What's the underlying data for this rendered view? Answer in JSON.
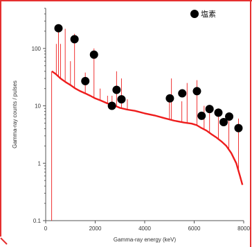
{
  "chart_data": {
    "type": "line",
    "xlabel": "Gamma-ray energy (keV)",
    "ylabel": "Gamma-ray counts / pulses",
    "xlim": [
      0,
      8000
    ],
    "ylim": [
      0.1,
      500
    ],
    "y_scale": "log",
    "x_ticks": [
      0,
      2000,
      4000,
      6000,
      8000
    ],
    "y_ticks": [
      0.1,
      1,
      10,
      100
    ],
    "y_tick_labels": [
      "0.1",
      "1",
      "10",
      "100"
    ],
    "grid": false,
    "line_color": "#ee1c1c",
    "marker_color": "#000000",
    "frame_color": "#e53030",
    "legend": {
      "position": "top-right",
      "label": "塩素"
    },
    "continuum": [
      [
        250,
        40
      ],
      [
        400,
        36
      ],
      [
        600,
        30
      ],
      [
        800,
        26
      ],
      [
        1000,
        23
      ],
      [
        1200,
        20
      ],
      [
        1400,
        18
      ],
      [
        1600,
        16.5
      ],
      [
        1800,
        15
      ],
      [
        2000,
        13.5
      ],
      [
        2200,
        12.5
      ],
      [
        2500,
        11
      ],
      [
        2800,
        10
      ],
      [
        3000,
        9.2
      ],
      [
        3300,
        8.6
      ],
      [
        3600,
        8.2
      ],
      [
        4000,
        7.4
      ],
      [
        4400,
        6.8
      ],
      [
        4800,
        6.1
      ],
      [
        5200,
        5.5
      ],
      [
        5600,
        5.1
      ],
      [
        5900,
        4.9
      ],
      [
        6100,
        4.6
      ],
      [
        6300,
        4.1
      ],
      [
        6500,
        3.7
      ],
      [
        6700,
        3.2
      ],
      [
        6900,
        2.8
      ],
      [
        7100,
        2.4
      ],
      [
        7300,
        2.0
      ],
      [
        7500,
        1.5
      ],
      [
        7700,
        1.0
      ],
      [
        7850,
        0.6
      ],
      [
        7950,
        0.42
      ]
    ],
    "peaks": [
      {
        "x": 240,
        "y": 0.1
      },
      {
        "x": 430,
        "y": 120
      },
      {
        "x": 517,
        "y": 250
      },
      {
        "x": 600,
        "y": 120
      },
      {
        "x": 788,
        "y": 220
      },
      {
        "x": 1000,
        "y": 60
      },
      {
        "x": 1165,
        "y": 180
      },
      {
        "x": 1600,
        "y": 38
      },
      {
        "x": 1951,
        "y": 100
      },
      {
        "x": 2200,
        "y": 20
      },
      {
        "x": 2500,
        "y": 15
      },
      {
        "x": 2680,
        "y": 15
      },
      {
        "x": 2864,
        "y": 40
      },
      {
        "x": 3062,
        "y": 30
      },
      {
        "x": 3300,
        "y": 13
      },
      {
        "x": 5000,
        "y": 15
      },
      {
        "x": 5080,
        "y": 30
      },
      {
        "x": 5500,
        "y": 12
      },
      {
        "x": 5715,
        "y": 25
      },
      {
        "x": 6111,
        "y": 28
      },
      {
        "x": 6400,
        "y": 10
      },
      {
        "x": 6620,
        "y": 10
      },
      {
        "x": 6978,
        "y": 9
      },
      {
        "x": 7400,
        "y": 6
      },
      {
        "x": 7790,
        "y": 6
      }
    ],
    "chlorine_markers": [
      {
        "x": 517,
        "y": 225
      },
      {
        "x": 1165,
        "y": 145
      },
      {
        "x": 1601,
        "y": 27
      },
      {
        "x": 1951,
        "y": 78
      },
      {
        "x": 2676,
        "y": 10
      },
      {
        "x": 2864,
        "y": 19
      },
      {
        "x": 3062,
        "y": 13
      },
      {
        "x": 5018,
        "y": 13.5
      },
      {
        "x": 5517,
        "y": 16.5
      },
      {
        "x": 6111,
        "y": 18
      },
      {
        "x": 6300,
        "y": 6.7
      },
      {
        "x": 6620,
        "y": 8.8
      },
      {
        "x": 6978,
        "y": 7.6
      },
      {
        "x": 7190,
        "y": 5.2
      },
      {
        "x": 7414,
        "y": 6.5
      },
      {
        "x": 7790,
        "y": 4.1
      }
    ]
  }
}
